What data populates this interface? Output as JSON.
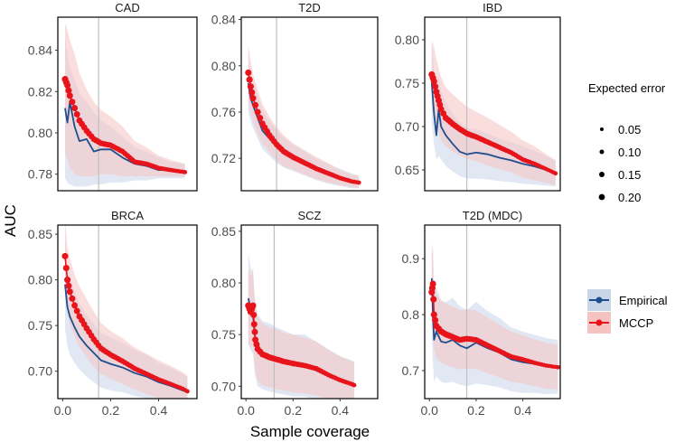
{
  "chart_data": {
    "type": "line",
    "xlabel": "Sample coverage",
    "ylabel": "AUC",
    "xlim": [
      -0.02,
      0.56
    ],
    "xticks": [
      0.0,
      0.2,
      0.4
    ],
    "xtick_labels": [
      "0.0",
      "0.2",
      "0.4"
    ],
    "vline_color": "#bfbfbf",
    "colors": {
      "empirical": "#1f4e8c",
      "mccp": "#e8141c",
      "empirical_band": "#c9d6ea",
      "mccp_band": "#f6c3c3"
    },
    "size_legend": {
      "title": "Expected error",
      "labels": [
        "0.05",
        "0.10",
        "0.15",
        "0.20"
      ]
    },
    "color_legend": {
      "labels": [
        "Empirical",
        "MCCP"
      ]
    },
    "panels": [
      {
        "title": "CAD",
        "ylim": [
          0.772,
          0.856
        ],
        "yticks": [
          0.78,
          0.8,
          0.82,
          0.84
        ],
        "ytick_labels": [
          "0.78",
          "0.80",
          "0.82",
          "0.84"
        ],
        "vline": 0.15,
        "empirical": {
          "x": [
            0.01,
            0.02,
            0.03,
            0.05,
            0.07,
            0.1,
            0.13,
            0.16,
            0.2,
            0.25,
            0.3,
            0.35,
            0.4,
            0.45,
            0.51
          ],
          "y": [
            0.812,
            0.805,
            0.815,
            0.803,
            0.796,
            0.797,
            0.791,
            0.792,
            0.792,
            0.788,
            0.785,
            0.784,
            0.782,
            0.782,
            0.781
          ]
        },
        "mccp": {
          "x": [
            0.01,
            0.02,
            0.03,
            0.05,
            0.07,
            0.1,
            0.13,
            0.16,
            0.2,
            0.25,
            0.3,
            0.35,
            0.4,
            0.45,
            0.51
          ],
          "y": [
            0.826,
            0.823,
            0.818,
            0.812,
            0.806,
            0.801,
            0.797,
            0.795,
            0.794,
            0.791,
            0.786,
            0.785,
            0.783,
            0.782,
            0.781
          ]
        },
        "band_empirical": {
          "lower": [
            0.778,
            0.776,
            0.775,
            0.774,
            0.774,
            0.774,
            0.775,
            0.775,
            0.776,
            0.776,
            0.777,
            0.777,
            0.778,
            0.778,
            0.778
          ],
          "upper": [
            0.846,
            0.838,
            0.832,
            0.826,
            0.819,
            0.815,
            0.81,
            0.806,
            0.803,
            0.798,
            0.793,
            0.791,
            0.788,
            0.786,
            0.785
          ]
        },
        "band_mccp": {
          "lower": [
            0.79,
            0.787,
            0.783,
            0.78,
            0.779,
            0.779,
            0.779,
            0.78,
            0.78,
            0.779,
            0.779,
            0.779,
            0.779,
            0.779,
            0.779
          ],
          "upper": [
            0.853,
            0.85,
            0.845,
            0.838,
            0.829,
            0.821,
            0.815,
            0.811,
            0.808,
            0.803,
            0.796,
            0.793,
            0.789,
            0.787,
            0.785
          ]
        }
      },
      {
        "title": "T2D",
        "ylim": [
          0.692,
          0.842
        ],
        "yticks": [
          0.72,
          0.76,
          0.8,
          0.84
        ],
        "ytick_labels": [
          "0.72",
          "0.76",
          "0.80",
          "0.84"
        ],
        "vline": 0.13,
        "empirical": {
          "x": [
            0.01,
            0.02,
            0.03,
            0.05,
            0.07,
            0.1,
            0.13,
            0.16,
            0.2,
            0.25,
            0.3,
            0.35,
            0.4,
            0.45,
            0.48
          ],
          "y": [
            0.785,
            0.772,
            0.766,
            0.755,
            0.744,
            0.737,
            0.73,
            0.724,
            0.72,
            0.715,
            0.71,
            0.706,
            0.703,
            0.7,
            0.699
          ]
        },
        "mccp": {
          "x": [
            0.01,
            0.02,
            0.03,
            0.05,
            0.07,
            0.1,
            0.13,
            0.16,
            0.2,
            0.25,
            0.3,
            0.35,
            0.4,
            0.45,
            0.48
          ],
          "y": [
            0.794,
            0.782,
            0.772,
            0.76,
            0.75,
            0.74,
            0.732,
            0.726,
            0.721,
            0.716,
            0.711,
            0.707,
            0.703,
            0.7,
            0.699
          ]
        },
        "band_empirical": {
          "lower": [
            0.76,
            0.752,
            0.746,
            0.737,
            0.728,
            0.722,
            0.716,
            0.712,
            0.709,
            0.705,
            0.701,
            0.698,
            0.696,
            0.694,
            0.694
          ],
          "upper": [
            0.808,
            0.795,
            0.787,
            0.774,
            0.762,
            0.752,
            0.745,
            0.738,
            0.732,
            0.726,
            0.72,
            0.715,
            0.711,
            0.707,
            0.705
          ]
        },
        "band_mccp": {
          "lower": [
            0.77,
            0.76,
            0.752,
            0.741,
            0.733,
            0.725,
            0.718,
            0.713,
            0.71,
            0.706,
            0.702,
            0.699,
            0.697,
            0.695,
            0.694
          ],
          "upper": [
            0.818,
            0.805,
            0.793,
            0.779,
            0.767,
            0.756,
            0.747,
            0.74,
            0.733,
            0.727,
            0.721,
            0.716,
            0.71,
            0.706,
            0.705
          ]
        }
      },
      {
        "title": "IBD",
        "ylim": [
          0.626,
          0.826
        ],
        "yticks": [
          0.65,
          0.7,
          0.75,
          0.8
        ],
        "ytick_labels": [
          "0.65",
          "0.70",
          "0.75",
          "0.80"
        ],
        "vline": 0.16,
        "empirical": {
          "x": [
            0.01,
            0.02,
            0.03,
            0.04,
            0.05,
            0.07,
            0.1,
            0.13,
            0.16,
            0.2,
            0.25,
            0.3,
            0.35,
            0.4,
            0.45,
            0.5,
            0.54
          ],
          "y": [
            0.75,
            0.715,
            0.69,
            0.72,
            0.7,
            0.69,
            0.68,
            0.671,
            0.668,
            0.67,
            0.668,
            0.664,
            0.661,
            0.657,
            0.654,
            0.65,
            0.647
          ]
        },
        "mccp": {
          "x": [
            0.01,
            0.02,
            0.03,
            0.04,
            0.05,
            0.07,
            0.1,
            0.13,
            0.16,
            0.2,
            0.25,
            0.3,
            0.35,
            0.4,
            0.45,
            0.5,
            0.54
          ],
          "y": [
            0.76,
            0.752,
            0.74,
            0.73,
            0.72,
            0.71,
            0.703,
            0.697,
            0.692,
            0.688,
            0.682,
            0.676,
            0.67,
            0.662,
            0.657,
            0.651,
            0.646
          ]
        },
        "band_empirical": {
          "lower": [
            0.704,
            0.68,
            0.662,
            0.666,
            0.662,
            0.655,
            0.648,
            0.643,
            0.64,
            0.64,
            0.639,
            0.637,
            0.636,
            0.634,
            0.633,
            0.632,
            0.631
          ],
          "upper": [
            0.796,
            0.765,
            0.736,
            0.76,
            0.74,
            0.728,
            0.715,
            0.705,
            0.698,
            0.697,
            0.692,
            0.686,
            0.682,
            0.677,
            0.672,
            0.666,
            0.661
          ]
        },
        "band_mccp": {
          "lower": [
            0.722,
            0.712,
            0.702,
            0.693,
            0.685,
            0.677,
            0.671,
            0.666,
            0.663,
            0.66,
            0.655,
            0.651,
            0.647,
            0.641,
            0.638,
            0.635,
            0.632
          ],
          "upper": [
            0.8,
            0.792,
            0.778,
            0.767,
            0.757,
            0.745,
            0.737,
            0.73,
            0.723,
            0.717,
            0.71,
            0.702,
            0.694,
            0.684,
            0.677,
            0.668,
            0.661
          ]
        }
      },
      {
        "title": "BRCA",
        "ylim": [
          0.67,
          0.86
        ],
        "yticks": [
          0.7,
          0.75,
          0.8,
          0.85
        ],
        "ytick_labels": [
          "0.70",
          "0.75",
          "0.80",
          "0.85"
        ],
        "vline": 0.15,
        "empirical": {
          "x": [
            0.01,
            0.02,
            0.03,
            0.05,
            0.07,
            0.1,
            0.13,
            0.16,
            0.2,
            0.25,
            0.3,
            0.35,
            0.4,
            0.45,
            0.5,
            0.52
          ],
          "y": [
            0.795,
            0.77,
            0.76,
            0.748,
            0.738,
            0.728,
            0.72,
            0.712,
            0.708,
            0.704,
            0.698,
            0.694,
            0.688,
            0.684,
            0.679,
            0.677
          ]
        },
        "mccp": {
          "x": [
            0.01,
            0.02,
            0.03,
            0.05,
            0.07,
            0.1,
            0.13,
            0.16,
            0.2,
            0.25,
            0.3,
            0.35,
            0.4,
            0.45,
            0.5,
            0.52
          ],
          "y": [
            0.826,
            0.8,
            0.787,
            0.772,
            0.76,
            0.747,
            0.735,
            0.725,
            0.718,
            0.711,
            0.703,
            0.697,
            0.691,
            0.686,
            0.681,
            0.678
          ]
        },
        "band_empirical": {
          "lower": [
            0.747,
            0.727,
            0.718,
            0.709,
            0.702,
            0.694,
            0.688,
            0.682,
            0.679,
            0.677,
            0.673,
            0.67,
            0.667,
            0.664,
            0.661,
            0.66
          ],
          "upper": [
            0.843,
            0.813,
            0.802,
            0.787,
            0.774,
            0.762,
            0.752,
            0.742,
            0.737,
            0.731,
            0.723,
            0.718,
            0.709,
            0.704,
            0.697,
            0.694
          ]
        },
        "band_mccp": {
          "lower": [
            0.784,
            0.764,
            0.751,
            0.738,
            0.727,
            0.715,
            0.705,
            0.697,
            0.692,
            0.686,
            0.68,
            0.675,
            0.67,
            0.666,
            0.663,
            0.661
          ],
          "upper": [
            0.868,
            0.836,
            0.823,
            0.806,
            0.793,
            0.779,
            0.765,
            0.753,
            0.744,
            0.736,
            0.726,
            0.719,
            0.712,
            0.706,
            0.699,
            0.695
          ]
        }
      },
      {
        "title": "SCZ",
        "ylim": [
          0.688,
          0.856
        ],
        "yticks": [
          0.7,
          0.75,
          0.8,
          0.85
        ],
        "ytick_labels": [
          "0.70",
          "0.75",
          "0.80",
          "0.85"
        ],
        "vline": 0.12,
        "empirical": {
          "x": [
            0.01,
            0.02,
            0.03,
            0.035,
            0.04,
            0.05,
            0.07,
            0.1,
            0.13,
            0.16,
            0.2,
            0.25,
            0.3,
            0.35,
            0.4,
            0.45,
            0.46
          ],
          "y": [
            0.785,
            0.775,
            0.77,
            0.755,
            0.745,
            0.735,
            0.73,
            0.728,
            0.725,
            0.723,
            0.72,
            0.72,
            0.715,
            0.71,
            0.705,
            0.702,
            0.701
          ]
        },
        "mccp": {
          "x": [
            0.01,
            0.02,
            0.03,
            0.035,
            0.04,
            0.05,
            0.07,
            0.1,
            0.13,
            0.16,
            0.2,
            0.25,
            0.3,
            0.35,
            0.4,
            0.45,
            0.46
          ],
          "y": [
            0.778,
            0.772,
            0.778,
            0.76,
            0.745,
            0.736,
            0.731,
            0.728,
            0.726,
            0.724,
            0.722,
            0.72,
            0.717,
            0.711,
            0.706,
            0.702,
            0.701
          ]
        },
        "band_empirical": {
          "lower": [
            0.741,
            0.735,
            0.731,
            0.718,
            0.709,
            0.7,
            0.697,
            0.695,
            0.693,
            0.692,
            0.69,
            0.69,
            0.687,
            0.684,
            0.681,
            0.679,
            0.678
          ],
          "upper": [
            0.829,
            0.815,
            0.809,
            0.792,
            0.781,
            0.77,
            0.763,
            0.761,
            0.757,
            0.754,
            0.75,
            0.75,
            0.743,
            0.736,
            0.729,
            0.725,
            0.724
          ]
        },
        "band_mccp": {
          "lower": [
            0.742,
            0.737,
            0.741,
            0.726,
            0.713,
            0.705,
            0.701,
            0.699,
            0.697,
            0.696,
            0.694,
            0.693,
            0.691,
            0.687,
            0.683,
            0.68,
            0.679
          ],
          "upper": [
            0.814,
            0.807,
            0.815,
            0.794,
            0.777,
            0.767,
            0.761,
            0.757,
            0.755,
            0.752,
            0.75,
            0.747,
            0.743,
            0.735,
            0.729,
            0.724,
            0.723
          ]
        }
      },
      {
        "title": "T2D (MDC)",
        "ylim": [
          0.65,
          0.96
        ],
        "yticks": [
          0.7,
          0.8,
          0.9
        ],
        "ytick_labels": [
          "0.7",
          "0.8",
          "0.9"
        ],
        "vline": 0.16,
        "empirical": {
          "x": [
            0.01,
            0.015,
            0.02,
            0.03,
            0.05,
            0.07,
            0.1,
            0.13,
            0.16,
            0.2,
            0.25,
            0.3,
            0.35,
            0.4,
            0.45,
            0.5,
            0.55
          ],
          "y": [
            0.865,
            0.8,
            0.755,
            0.77,
            0.752,
            0.75,
            0.755,
            0.745,
            0.74,
            0.75,
            0.74,
            0.732,
            0.72,
            0.715,
            0.712,
            0.708,
            0.707
          ]
        },
        "mccp": {
          "x": [
            0.01,
            0.015,
            0.02,
            0.03,
            0.05,
            0.07,
            0.1,
            0.13,
            0.16,
            0.2,
            0.25,
            0.3,
            0.35,
            0.4,
            0.45,
            0.5,
            0.55
          ],
          "y": [
            0.84,
            0.855,
            0.8,
            0.78,
            0.77,
            0.765,
            0.76,
            0.755,
            0.757,
            0.755,
            0.745,
            0.735,
            0.725,
            0.72,
            0.714,
            0.709,
            0.706
          ]
        },
        "band_empirical": {
          "lower": [
            0.76,
            0.715,
            0.68,
            0.69,
            0.68,
            0.678,
            0.68,
            0.675,
            0.672,
            0.677,
            0.674,
            0.67,
            0.663,
            0.66,
            0.66,
            0.658,
            0.659
          ],
          "upper": [
            0.93,
            0.885,
            0.83,
            0.85,
            0.825,
            0.822,
            0.83,
            0.815,
            0.808,
            0.823,
            0.806,
            0.794,
            0.777,
            0.77,
            0.764,
            0.758,
            0.755
          ]
        },
        "band_mccp": {
          "lower": [
            0.77,
            0.785,
            0.74,
            0.722,
            0.714,
            0.71,
            0.706,
            0.702,
            0.704,
            0.703,
            0.695,
            0.688,
            0.68,
            0.677,
            0.672,
            0.668,
            0.666
          ],
          "upper": [
            0.91,
            0.925,
            0.86,
            0.838,
            0.826,
            0.82,
            0.814,
            0.808,
            0.81,
            0.807,
            0.795,
            0.782,
            0.77,
            0.763,
            0.756,
            0.75,
            0.746
          ]
        }
      }
    ]
  }
}
